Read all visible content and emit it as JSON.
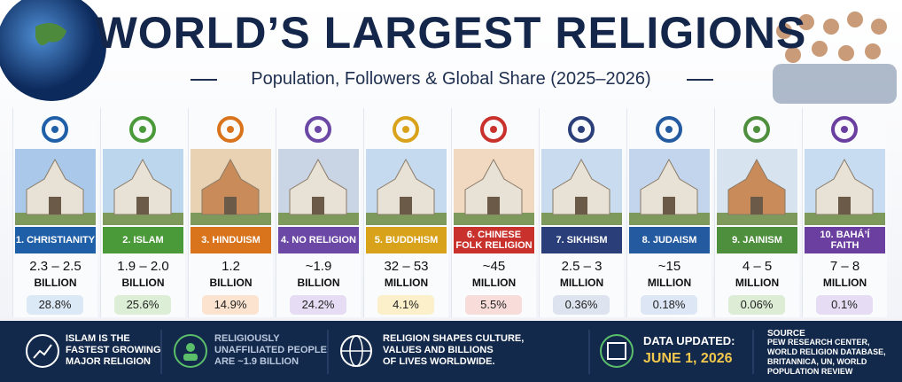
{
  "header": {
    "title": "WORLD’S LARGEST RELIGIONS",
    "subtitle": "Population, Followers & Global Share (2025–2026)"
  },
  "religions": [
    {
      "label": "1. CHRISTIANITY",
      "population": "2.3 – 2.5",
      "unit": "BILLION",
      "share": "28.8%"
    },
    {
      "label": "2. ISLAM",
      "population": "1.9 – 2.0",
      "unit": "BILLION",
      "share": "25.6%"
    },
    {
      "label": "3. HINDUISM",
      "population": "1.2",
      "unit": "BILLION",
      "share": "14.9%"
    },
    {
      "label": "4. NO RELIGION",
      "population": "~1.9",
      "unit": "BILLION",
      "share": "24.2%"
    },
    {
      "label": "5. BUDDHISM",
      "population": "32 – 53",
      "unit": "MILLION",
      "share": "4.1%"
    },
    {
      "label": "6. CHINESE FOLK RELIGION",
      "population": "~45",
      "unit": "MILLION",
      "share": "5.5%"
    },
    {
      "label": "7. SIKHISM",
      "population": "2.5 – 3",
      "unit": "MILLION",
      "share": "0.36%"
    },
    {
      "label": "8. JUDAISM",
      "population": "~15",
      "unit": "MILLION",
      "share": "0.18%"
    },
    {
      "label": "9. JAINISM",
      "population": "4 – 5",
      "unit": "MILLION",
      "share": "0.06%"
    },
    {
      "label": "10. BAHÁ’Í FAITH",
      "population": "7 – 8",
      "unit": "MILLION",
      "share": "0.1%"
    }
  ],
  "footer": {
    "facts": [
      {
        "lines": [
          "ISLAM IS THE",
          "FASTEST GROWING",
          "MAJOR RELIGION"
        ]
      },
      {
        "lines": [
          "RELIGIOUSLY",
          "UNAFFILIATED PEOPLE",
          "ARE ~1.9 BILLION"
        ]
      },
      {
        "lines": [
          "RELIGION SHAPES CULTURE,",
          "VALUES AND BILLIONS",
          "OF LIVES WORLDWIDE."
        ]
      }
    ],
    "updated": {
      "label": "DATA UPDATED:",
      "date": "JUNE 1, 2026"
    },
    "source": {
      "label": "SOURCE",
      "lines": [
        "PEW RESEARCH CENTER,",
        "WORLD RELIGION DATABASE,",
        "BRITANNICA, UN, WORLD",
        "POPULATION REVIEW"
      ]
    }
  }
}
